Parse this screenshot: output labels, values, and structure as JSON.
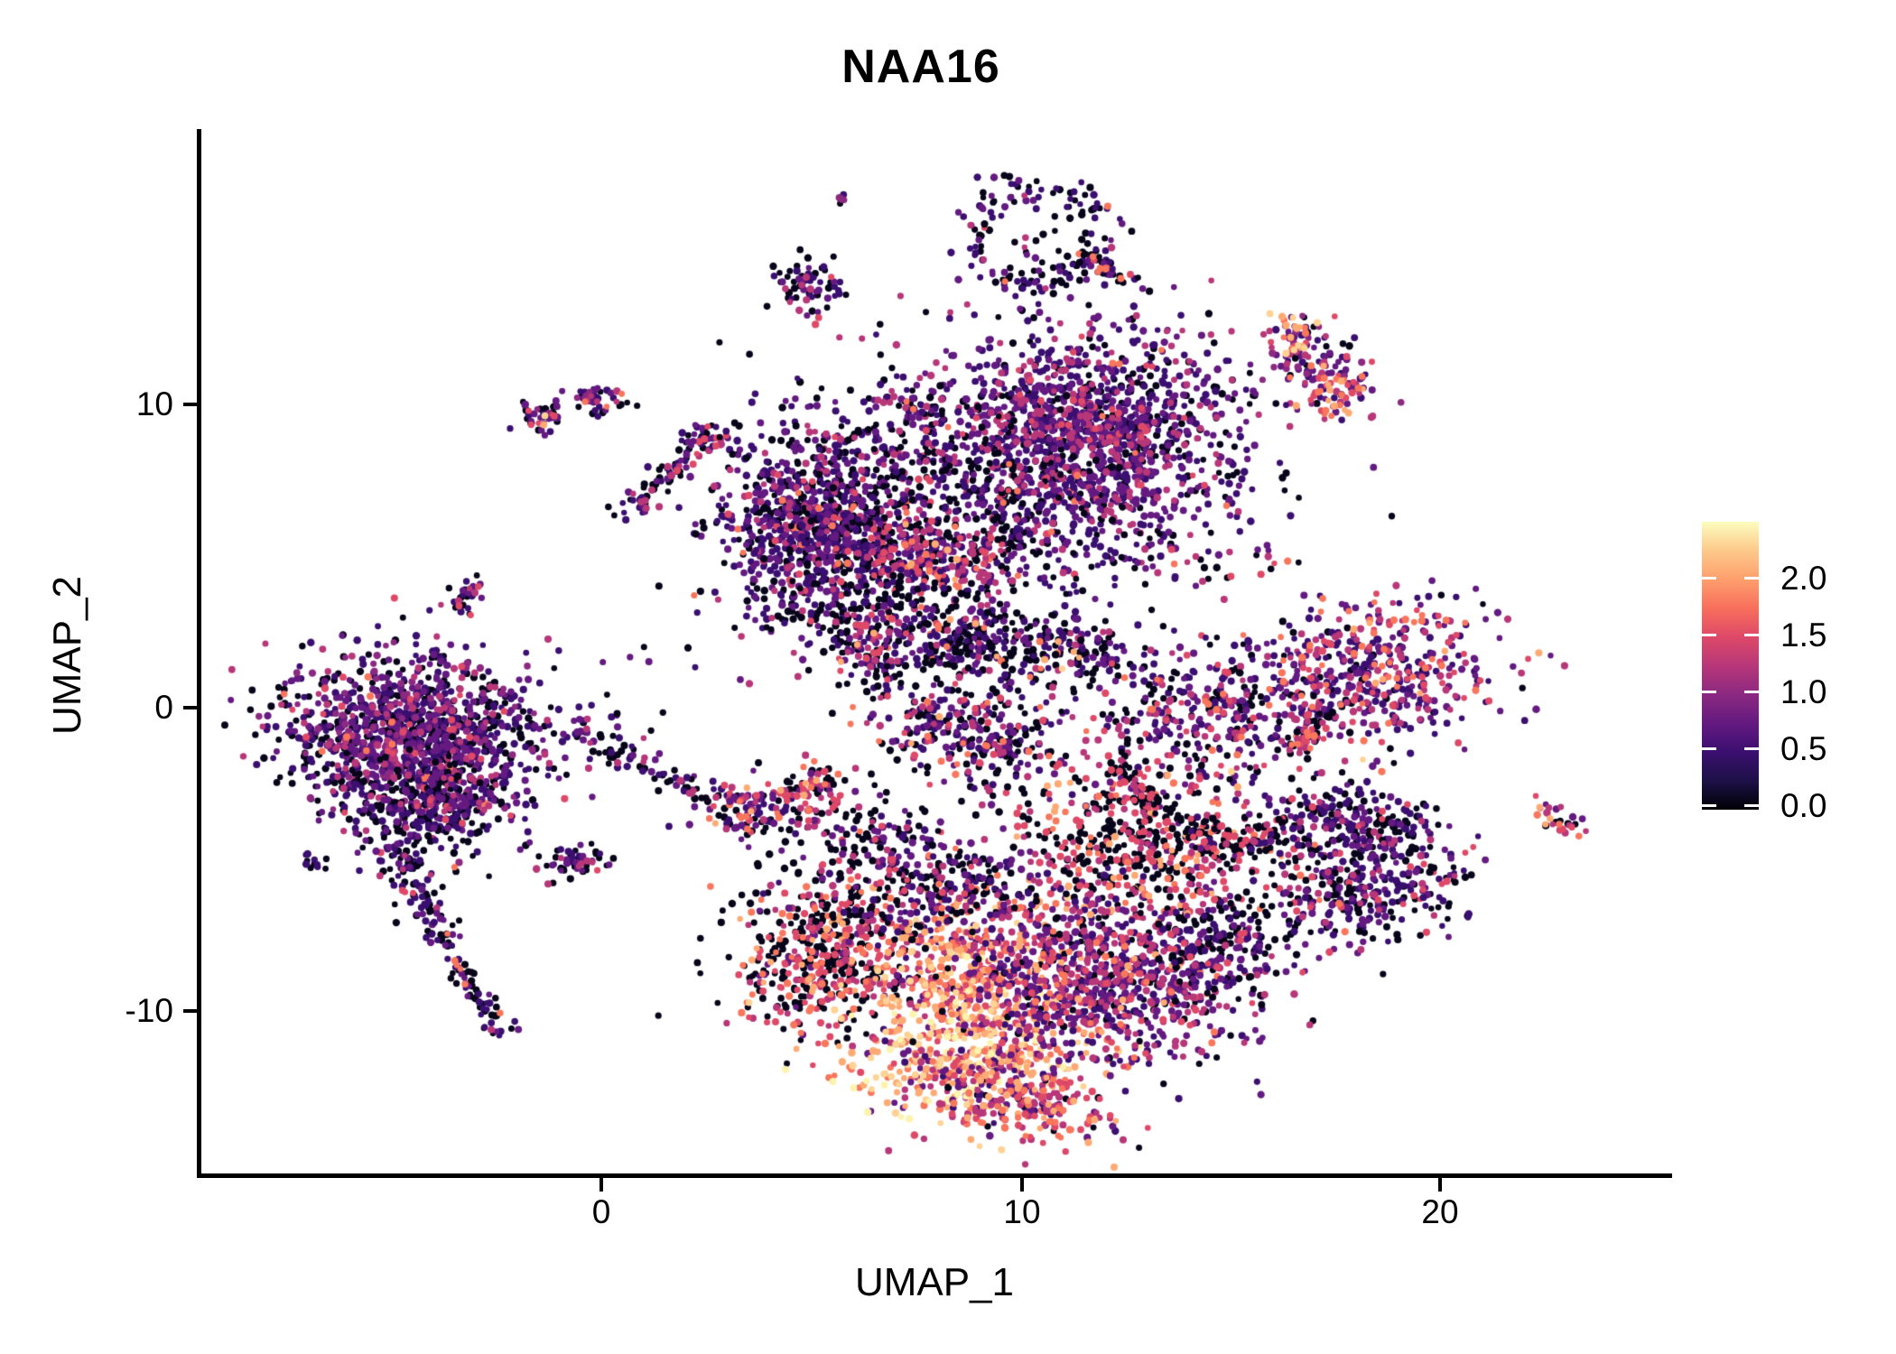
{
  "title": "NAA16",
  "chart_data": {
    "type": "scatter",
    "title": "NAA16",
    "subtitle": "",
    "xlabel": "UMAP_1",
    "ylabel": "UMAP_2",
    "x_ticks": [
      "0",
      "10",
      "20"
    ],
    "y_ticks": [
      "10",
      "0",
      "-10"
    ],
    "x_tick_values": [
      0,
      10,
      20
    ],
    "y_tick_values": [
      10,
      0,
      -10
    ],
    "x_range": [
      -9.6,
      25.5
    ],
    "y_range": [
      -15.45,
      18.9
    ],
    "grid": false,
    "point_radius": 3.7,
    "legend": {
      "position": "right",
      "colormap": "magma",
      "ticks": [
        "2.0",
        "1.5",
        "1.0",
        "0.5",
        "0.0"
      ],
      "tick_values": [
        2.0,
        1.5,
        1.0,
        0.5,
        0.0
      ],
      "tick_fracs_from_top": [
        0.194,
        0.392,
        0.589,
        0.787,
        0.984
      ],
      "vmin": 0.0,
      "vmax": 2.5,
      "tick_color": "#ffffff",
      "gradient_bottom_to_top": [
        "#000004",
        "#1d1147",
        "#3b0f70",
        "#641a80",
        "#8c2981",
        "#b73779",
        "#de4968",
        "#f76f5c",
        "#fe9f6d",
        "#fdc98a",
        "#fcfdbf"
      ]
    },
    "palette": {
      "k": "#08051a",
      "dp": "#3b0f70",
      "p": "#641a80",
      "v": "#8c2981",
      "m": "#b73779",
      "pk": "#de4968",
      "s": "#f8765c",
      "o": "#feaa74",
      "pe": "#fed395",
      "y": "#fcf3ae"
    },
    "palette_order": [
      "k",
      "dp",
      "p",
      "v",
      "m",
      "pk",
      "s",
      "o",
      "pe",
      "y"
    ],
    "clusters": [
      {
        "name": "left-main",
        "t": "g",
        "x": -4.5,
        "y": -1.0,
        "sx": 1.55,
        "sy": 1.35,
        "rot": -20,
        "n": 1300,
        "mix": {
          "k": 32,
          "dp": 28,
          "p": 22,
          "v": 8,
          "m": 7,
          "pk": 2,
          "s": 1
        }
      },
      {
        "name": "left-main-south",
        "t": "g",
        "x": -4.2,
        "y": -3.3,
        "sx": 0.9,
        "sy": 0.8,
        "rot": 0,
        "n": 260,
        "mix": {
          "k": 40,
          "dp": 30,
          "p": 20,
          "m": 8,
          "pk": 2
        }
      },
      {
        "name": "left-tail-upper",
        "t": "s",
        "x1": -5.0,
        "y1": -4.2,
        "x2": -4.0,
        "y2": -7.2,
        "w": 0.3,
        "n": 90,
        "mix": {
          "k": 45,
          "dp": 30,
          "p": 15,
          "m": 8,
          "pk": 2
        }
      },
      {
        "name": "left-tail-lower",
        "t": "s",
        "x1": -4.0,
        "y1": -7.2,
        "x2": -2.4,
        "y2": -10.7,
        "w": 0.2,
        "n": 80,
        "mix": {
          "k": 50,
          "dp": 28,
          "p": 12,
          "m": 7,
          "s": 3
        }
      },
      {
        "name": "left-tiny-dot",
        "t": "g",
        "x": -6.9,
        "y": -5.1,
        "sx": 0.18,
        "sy": 0.12,
        "rot": 0,
        "n": 12,
        "mix": {
          "k": 60,
          "dp": 40
        }
      },
      {
        "name": "left-diag-blob",
        "t": "s",
        "x1": -3.4,
        "y1": 3.2,
        "x2": -2.9,
        "y2": 4.4,
        "w": 0.15,
        "n": 26,
        "mix": {
          "k": 35,
          "dp": 30,
          "p": 20,
          "m": 10,
          "pk": 5
        }
      },
      {
        "name": "small-blob-a",
        "t": "g",
        "x": -1.4,
        "y": 9.6,
        "sx": 0.3,
        "sy": 0.28,
        "rot": 0,
        "n": 40,
        "mix": {
          "k": 28,
          "dp": 20,
          "p": 20,
          "v": 12,
          "pk": 12,
          "o": 4,
          "pe": 4
        }
      },
      {
        "name": "small-blob-b",
        "t": "g",
        "x": -0.1,
        "y": 10.2,
        "sx": 0.38,
        "sy": 0.22,
        "rot": -10,
        "n": 48,
        "mix": {
          "k": 30,
          "dp": 22,
          "p": 20,
          "v": 13,
          "m": 10,
          "s": 5
        }
      },
      {
        "name": "mid-diag-streak",
        "t": "s",
        "x1": 0.6,
        "y1": 6.4,
        "x2": 2.5,
        "y2": 8.8,
        "w": 0.22,
        "n": 80,
        "mix": {
          "k": 42,
          "dp": 25,
          "p": 15,
          "m": 12,
          "pk": 6
        }
      },
      {
        "name": "mid-diag-head",
        "t": "g",
        "x": 2.5,
        "y": 8.9,
        "sx": 0.3,
        "sy": 0.2,
        "rot": 0,
        "n": 26,
        "mix": {
          "k": 20,
          "dp": 20,
          "p": 20,
          "pk": 20,
          "m": 10,
          "pe": 5,
          "s": 5
        }
      },
      {
        "name": "tiny-pair-top",
        "t": "g",
        "x": 5.7,
        "y": 16.9,
        "sx": 0.12,
        "sy": 0.15,
        "rot": 0,
        "n": 7,
        "mix": {
          "k": 50,
          "dp": 30,
          "v": 20
        }
      },
      {
        "name": "top-small-blob",
        "t": "g",
        "x": 4.9,
        "y": 13.9,
        "sx": 0.4,
        "sy": 0.5,
        "rot": 0,
        "n": 66,
        "mix": {
          "k": 30,
          "dp": 28,
          "p": 24,
          "m": 12,
          "pk": 6
        }
      },
      {
        "name": "top-ring",
        "t": "r",
        "x": 10.35,
        "y": 15.6,
        "rx": 1.6,
        "ry": 1.55,
        "w": 0.2,
        "n": 150,
        "mix": {
          "k": 45,
          "dp": 30,
          "p": 14,
          "m": 6,
          "pk": 3,
          "s": 2
        }
      },
      {
        "name": "top-ring-inner",
        "t": "g",
        "x": 10.3,
        "y": 15.6,
        "sx": 0.6,
        "sy": 0.55,
        "rot": 0,
        "n": 16,
        "mix": {
          "k": 60,
          "dp": 20,
          "p": 10,
          "m": 10
        }
      },
      {
        "name": "top-ring-tail",
        "t": "s",
        "x1": 11.3,
        "y1": 15.0,
        "x2": 12.3,
        "y2": 14.3,
        "w": 0.15,
        "n": 30,
        "mix": {
          "k": 30,
          "dp": 20,
          "p": 20,
          "m": 10,
          "pk": 10,
          "s": 10
        }
      },
      {
        "name": "topright-diag",
        "t": "s",
        "x1": 16.4,
        "y1": 12.7,
        "x2": 17.7,
        "y2": 10.2,
        "w": 0.5,
        "n": 150,
        "mix": {
          "k": 12,
          "dp": 20,
          "p": 23,
          "v": 15,
          "m": 12,
          "pk": 8,
          "s": 6,
          "o": 4
        }
      },
      {
        "name": "topright-bright-low",
        "t": "g",
        "x": 17.6,
        "y": 10.4,
        "sx": 0.25,
        "sy": 0.3,
        "rot": 0,
        "n": 20,
        "mix": {
          "o": 40,
          "s": 30,
          "pk": 30
        }
      },
      {
        "name": "topright-bright-high",
        "t": "g",
        "x": 16.4,
        "y": 12.5,
        "sx": 0.3,
        "sy": 0.3,
        "rot": 0,
        "n": 16,
        "mix": {
          "o": 50,
          "s": 30,
          "pe": 20
        }
      },
      {
        "name": "topcenter-right-lobe",
        "t": "g",
        "x": 11.6,
        "y": 8.9,
        "sx": 1.8,
        "sy": 2.0,
        "rot": 20,
        "n": 1500,
        "mix": {
          "k": 17,
          "dp": 37,
          "p": 29,
          "m": 13,
          "pk": 3,
          "s": 1
        }
      },
      {
        "name": "topcenter-left-lobe",
        "t": "g",
        "x": 5.1,
        "y": 6.1,
        "sx": 1.2,
        "sy": 1.6,
        "rot": 0,
        "n": 850,
        "mix": {
          "k": 30,
          "dp": 34,
          "p": 25,
          "m": 8,
          "pk": 2,
          "s": 1
        }
      },
      {
        "name": "topcenter-bridge",
        "t": "g",
        "x": 8.2,
        "y": 6.5,
        "sx": 2.1,
        "sy": 2.0,
        "rot": 0,
        "n": 650,
        "mix": {
          "k": 44,
          "dp": 26,
          "p": 16,
          "m": 10,
          "pk": 2,
          "s": 2
        }
      },
      {
        "name": "topcenter-warm-patch",
        "t": "g",
        "x": 7.8,
        "y": 4.8,
        "sx": 0.95,
        "sy": 0.6,
        "rot": -10,
        "n": 150,
        "mix": {
          "m": 30,
          "pk": 25,
          "p": 18,
          "dp": 12,
          "s": 10,
          "o": 5
        }
      },
      {
        "name": "topcenter-tongue",
        "t": "g",
        "x": 7.4,
        "y": 2.6,
        "sx": 1.7,
        "sy": 1.0,
        "rot": -15,
        "n": 260,
        "mix": {
          "k": 50,
          "dp": 24,
          "p": 14,
          "m": 8,
          "s": 2,
          "pk": 2
        }
      },
      {
        "name": "top-small-streak",
        "t": "s",
        "x1": 6.7,
        "y1": 10.3,
        "x2": 8.0,
        "y2": 9.8,
        "w": 0.15,
        "n": 36,
        "mix": {
          "k": 30,
          "dp": 25,
          "p": 20,
          "m": 12,
          "pk": 8,
          "s": 5
        }
      },
      {
        "name": "mid-magenta-blob",
        "t": "g",
        "x": 6.3,
        "y": 2.2,
        "sx": 0.5,
        "sy": 0.6,
        "rot": 0,
        "n": 85,
        "mix": {
          "m": 28,
          "p": 22,
          "k": 20,
          "pk": 14,
          "dp": 10,
          "o": 6
        }
      },
      {
        "name": "wing-upper-arm",
        "t": "s",
        "x1": 7.9,
        "y1": 2.2,
        "x2": 12.0,
        "y2": 1.9,
        "w": 0.5,
        "n": 240,
        "mix": {
          "k": 50,
          "dp": 22,
          "p": 14,
          "m": 9,
          "s": 3,
          "o": 2
        }
      },
      {
        "name": "wing-lower-lobe",
        "t": "g",
        "x": 8.7,
        "y": -0.8,
        "sx": 1.15,
        "sy": 0.8,
        "rot": -25,
        "n": 300,
        "mix": {
          "k": 34,
          "dp": 24,
          "p": 18,
          "m": 13,
          "pk": 7,
          "s": 3,
          "o": 1
        }
      },
      {
        "name": "right-mid-cluster",
        "t": "g",
        "x": 14.3,
        "y": -0.3,
        "sx": 1.6,
        "sy": 1.25,
        "rot": 8,
        "n": 400,
        "mix": {
          "k": 26,
          "dp": 24,
          "p": 21,
          "m": 17,
          "pk": 7,
          "s": 4,
          "pe": 1
        }
      },
      {
        "name": "tiny-scatter-mid-right",
        "t": "g",
        "x": 15.4,
        "y": 4.6,
        "sx": 0.55,
        "sy": 0.3,
        "rot": 0,
        "n": 14,
        "mix": {
          "k": 50,
          "p": 20,
          "m": 15,
          "pk": 15
        }
      },
      {
        "name": "right-rounded",
        "t": "g",
        "x": 18.5,
        "y": 1.3,
        "sx": 1.4,
        "sy": 1.25,
        "rot": -12,
        "n": 460,
        "mix": {
          "dp": 28,
          "p": 26,
          "m": 20,
          "pk": 10,
          "s": 8,
          "k": 6,
          "o": 2
        }
      },
      {
        "name": "right-rounded-tail",
        "t": "s",
        "x1": 17.2,
        "y1": 0.3,
        "x2": 16.6,
        "y2": -1.7,
        "w": 0.2,
        "n": 55,
        "mix": {
          "k": 38,
          "pk": 18,
          "m": 16,
          "p": 16,
          "s": 12
        }
      },
      {
        "name": "pink-archipelago",
        "t": "g",
        "x": 12.9,
        "y": -4.7,
        "sx": 1.8,
        "sy": 1.3,
        "rot": -8,
        "n": 520,
        "mix": {
          "k": 50,
          "pk": 20,
          "m": 12,
          "s": 8,
          "p": 6,
          "o": 4
        }
      },
      {
        "name": "archipelago-chain",
        "t": "s",
        "x1": 12.3,
        "y1": -1.9,
        "x2": 13.2,
        "y2": -3.3,
        "w": 0.25,
        "n": 60,
        "mix": {
          "k": 55,
          "pk": 20,
          "m": 13,
          "p": 12
        }
      },
      {
        "name": "archipelago-bridge",
        "t": "s",
        "x1": 13.9,
        "y1": -4.1,
        "x2": 16.1,
        "y2": -4.5,
        "w": 0.3,
        "n": 90,
        "mix": {
          "k": 72,
          "dp": 10,
          "pk": 10,
          "m": 8
        }
      },
      {
        "name": "arrow-top-lobe",
        "t": "g",
        "x": 18.0,
        "y": -3.9,
        "sx": 1.15,
        "sy": 0.75,
        "rot": -10,
        "n": 270,
        "mix": {
          "k": 38,
          "dp": 30,
          "p": 18,
          "m": 9,
          "pk": 4,
          "s": 1
        }
      },
      {
        "name": "arrow-bottom-lobe",
        "t": "g",
        "x": 18.2,
        "y": -6.1,
        "sx": 1.2,
        "sy": 0.85,
        "rot": 12,
        "n": 280,
        "mix": {
          "k": 33,
          "dp": 32,
          "p": 19,
          "m": 10,
          "pk": 5,
          "s": 1
        }
      },
      {
        "name": "far-right-tiny",
        "t": "s",
        "x1": 22.4,
        "y1": -3.2,
        "x2": 23.2,
        "y2": -4.2,
        "w": 0.17,
        "n": 30,
        "mix": {
          "m": 30,
          "pk": 22,
          "p": 20,
          "k": 14,
          "s": 10,
          "o": 4
        }
      },
      {
        "name": "bottom-left-arm",
        "t": "g",
        "x": 5.3,
        "y": -8.4,
        "sx": 1.1,
        "sy": 1.2,
        "rot": -35,
        "n": 460,
        "mix": {
          "k": 50,
          "pk": 17,
          "s": 12,
          "m": 11,
          "o": 6,
          "p": 4
        }
      },
      {
        "name": "bottom-core-upper",
        "t": "g",
        "x": 8.6,
        "y": -8.4,
        "sx": 1.3,
        "sy": 1.1,
        "rot": 0,
        "n": 420,
        "mix": {
          "s": 24,
          "o": 20,
          "m": 20,
          "pk": 15,
          "pe": 8,
          "p": 8,
          "dp": 5
        }
      },
      {
        "name": "bottom-core-bright",
        "t": "g",
        "x": 8.9,
        "y": -11.2,
        "sx": 1.5,
        "sy": 1.15,
        "rot": 15,
        "n": 480,
        "mix": {
          "o": 28,
          "s": 20,
          "pe": 18,
          "y": 12,
          "m": 12,
          "pk": 7,
          "p": 3
        }
      },
      {
        "name": "bottom-right-lobe",
        "t": "g",
        "x": 12.0,
        "y": -9.0,
        "sx": 1.7,
        "sy": 1.5,
        "rot": -12,
        "n": 850,
        "mix": {
          "p": 30,
          "dp": 22,
          "m": 22,
          "k": 11,
          "pk": 8,
          "s": 5,
          "o": 2
        }
      },
      {
        "name": "bottom-right-tip",
        "t": "g",
        "x": 14.5,
        "y": -8.0,
        "sx": 0.85,
        "sy": 0.85,
        "rot": 0,
        "n": 170,
        "mix": {
          "k": 35,
          "dp": 30,
          "p": 20,
          "m": 10,
          "pk": 5
        }
      },
      {
        "name": "bottom-tip",
        "t": "g",
        "x": 9.9,
        "y": -12.9,
        "sx": 1.25,
        "sy": 0.6,
        "rot": -25,
        "n": 240,
        "mix": {
          "m": 24,
          "pk": 20,
          "o": 14,
          "s": 14,
          "p": 13,
          "dp": 10,
          "k": 5
        }
      },
      {
        "name": "bottom-top-edge",
        "t": "g",
        "x": 7.7,
        "y": -5.9,
        "sx": 1.6,
        "sy": 0.8,
        "rot": 8,
        "n": 280,
        "mix": {
          "k": 45,
          "dp": 20,
          "p": 15,
          "m": 10,
          "pk": 7,
          "s": 3
        }
      },
      {
        "name": "bottom-scatter-above",
        "t": "g",
        "x": 6.1,
        "y": -4.3,
        "sx": 1.1,
        "sy": 0.9,
        "rot": 0,
        "n": 110,
        "mix": {
          "k": 55,
          "dp": 15,
          "p": 15,
          "m": 10,
          "pk": 5
        }
      },
      {
        "name": "mid-left-blob",
        "t": "g",
        "x": 3.4,
        "y": -3.3,
        "sx": 0.62,
        "sy": 0.5,
        "rot": -20,
        "n": 105,
        "mix": {
          "p": 28,
          "dp": 24,
          "k": 20,
          "m": 15,
          "pk": 6,
          "s": 4,
          "o": 3
        }
      },
      {
        "name": "mid-left-blob-warm",
        "t": "g",
        "x": 5.1,
        "y": -2.6,
        "sx": 0.5,
        "sy": 0.5,
        "rot": 0,
        "n": 75,
        "mix": {
          "k": 30,
          "pk": 20,
          "m": 20,
          "p": 14,
          "s": 10,
          "o": 6
        }
      },
      {
        "name": "tiny-strand",
        "t": "s",
        "x1": 6.5,
        "y1": -4.0,
        "x2": 6.9,
        "y2": -5.4,
        "w": 0.12,
        "n": 16,
        "mix": {
          "p": 40,
          "m": 20,
          "k": 20,
          "pk": 20
        }
      },
      {
        "name": "small-triangle-blob",
        "t": "g",
        "x": -0.65,
        "y": -5.1,
        "sx": 0.5,
        "sy": 0.32,
        "rot": -15,
        "n": 55,
        "mix": {
          "k": 50,
          "dp": 20,
          "p": 15,
          "m": 10,
          "pk": 5
        }
      },
      {
        "name": "left-to-mid-trail",
        "t": "s",
        "x1": -1.1,
        "y1": -0.4,
        "x2": 2.6,
        "y2": -3.0,
        "w": 0.3,
        "n": 80,
        "mix": {
          "k": 52,
          "dp": 24,
          "p": 14,
          "m": 10
        }
      },
      {
        "name": "strays-middle",
        "t": "g",
        "x": 2.8,
        "y": 1.2,
        "sx": 2.2,
        "sy": 2.2,
        "rot": 0,
        "n": 26,
        "mix": {
          "k": 65,
          "dp": 15,
          "p": 10,
          "m": 10
        }
      },
      {
        "name": "strays-bottom-right",
        "t": "g",
        "x": 15.8,
        "y": -6.8,
        "sx": 1.3,
        "sy": 0.9,
        "rot": 0,
        "n": 22,
        "mix": {
          "k": 60,
          "dp": 20,
          "pk": 10,
          "m": 10
        }
      }
    ]
  }
}
